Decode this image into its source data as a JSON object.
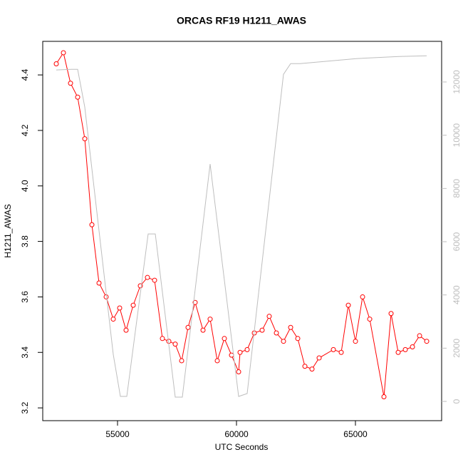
{
  "chart_data": {
    "type": "line",
    "title": "ORCAS RF19 H1211_AWAS",
    "x_label": "UTC Seconds",
    "y_label": "H1211_AWAS",
    "xlim": [
      51856,
      68623
    ],
    "ylim": [
      3.154,
      4.521
    ],
    "y2lim": [
      -723,
      13526
    ],
    "xticks": [
      55000,
      60000,
      65000
    ],
    "yticks": [
      3.2,
      3.4,
      3.6,
      3.8,
      {
        "value": 4,
        "label": "4.0"
      },
      4.2,
      4.4
    ],
    "y2ticks": [
      0,
      2000,
      4000,
      6000,
      8000,
      10000,
      12000
    ],
    "y2_color": "#bebebe",
    "series": [
      {
        "color": "#ff0000",
        "axis": "y",
        "markers": true,
        "x": [
          52425,
          52725,
          53024,
          53323,
          53623,
          53922,
          54222,
          54521,
          54820,
          55090,
          55359,
          55659,
          55958,
          56257,
          56557,
          56886,
          57156,
          57425,
          57695,
          57964,
          58263,
          58593,
          58892,
          59192,
          59491,
          59791,
          60090,
          60150,
          60449,
          60749,
          61078,
          61377,
          61677,
          61976,
          62276,
          62575,
          62875,
          63174,
          63474,
          64073,
          64402,
          64701,
          65001,
          65300,
          65600,
          66198,
          66498,
          66797,
          67097,
          67396,
          67696,
          67995
        ],
        "values": [
          4.44,
          4.48,
          4.37,
          4.32,
          4.17,
          3.86,
          3.65,
          3.6,
          3.52,
          3.56,
          3.48,
          3.57,
          3.64,
          3.67,
          3.66,
          3.45,
          3.44,
          3.43,
          3.37,
          3.49,
          3.58,
          3.48,
          3.52,
          3.37,
          3.45,
          3.39,
          3.33,
          3.4,
          3.41,
          3.47,
          3.48,
          3.53,
          3.47,
          3.44,
          3.49,
          3.45,
          3.35,
          3.34,
          3.38,
          3.41,
          3.4,
          3.57,
          3.44,
          3.6,
          3.52,
          3.24,
          3.54,
          3.4,
          3.41,
          3.42,
          3.46,
          3.44
        ]
      },
      {
        "color": "#bebebe",
        "axis": "y2",
        "markers": false,
        "x": [
          52425,
          53054,
          53323,
          53623,
          54820,
          55120,
          55389,
          56287,
          56587,
          57425,
          57724,
          58892,
          60090,
          60449,
          61976,
          62276,
          62665,
          65030,
          66827,
          67995
        ],
        "values": [
          12450,
          12476,
          12476,
          11058,
          1767,
          187,
          187,
          6292,
          6292,
          161,
          161,
          8916,
          187,
          294,
          12289,
          12690,
          12690,
          12878,
          12958,
          12985
        ]
      }
    ]
  }
}
